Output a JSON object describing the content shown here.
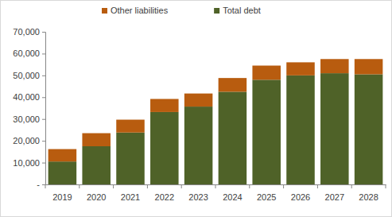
{
  "chart_data": {
    "type": "bar",
    "stacked": true,
    "legend": "top",
    "grid": false,
    "categories": [
      "2019",
      "2020",
      "2021",
      "2022",
      "2023",
      "2024",
      "2025",
      "2026",
      "2027",
      "2028"
    ],
    "series": [
      {
        "name": "Total debt",
        "color": "#4f6228",
        "values": [
          10500,
          17500,
          23800,
          33200,
          35700,
          42500,
          48000,
          50000,
          51000,
          50500
        ]
      },
      {
        "name": "Other liabilities",
        "color": "#b85c0f",
        "values": [
          5700,
          6000,
          5900,
          6000,
          6000,
          6300,
          6500,
          6000,
          6500,
          7000
        ]
      }
    ],
    "ylim": [
      0,
      70000
    ],
    "yticks": [
      {
        "value": 0,
        "label": "-"
      },
      {
        "value": 10000,
        "label": "10,000"
      },
      {
        "value": 20000,
        "label": "20,000"
      },
      {
        "value": 30000,
        "label": "30,000"
      },
      {
        "value": 40000,
        "label": "40,000"
      },
      {
        "value": 50000,
        "label": "50,000"
      },
      {
        "value": 60000,
        "label": "60,000"
      },
      {
        "value": 70000,
        "label": "70,000"
      }
    ]
  }
}
